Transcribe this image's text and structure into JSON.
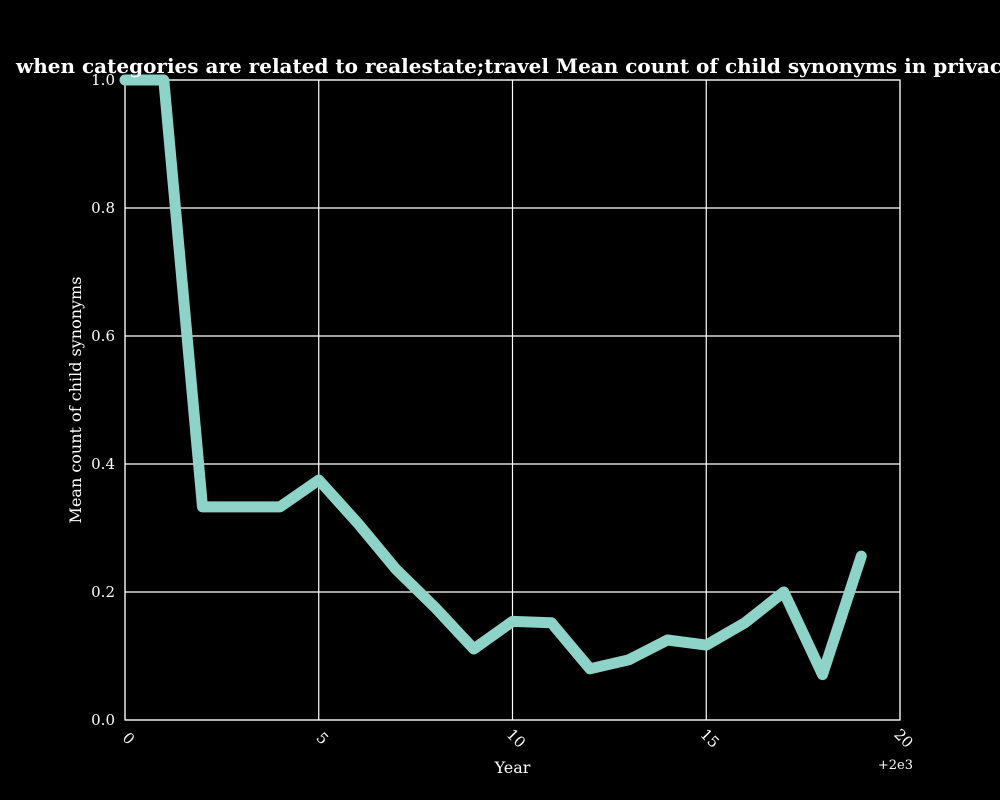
{
  "chart_data": {
    "type": "line",
    "title": "when categories are related to realestate;travel Mean count of child synonyms in privacy policies by Year",
    "xlabel": "Year",
    "ylabel": "Mean count of child synonyms",
    "x_offset_label": "+2e3",
    "xlim": [
      0,
      20
    ],
    "ylim": [
      0,
      1
    ],
    "x_ticks": [
      "0",
      "5",
      "10",
      "15",
      "20"
    ],
    "y_ticks": [
      "0.0",
      "0.2",
      "0.4",
      "0.6",
      "0.8",
      "1.0"
    ],
    "grid": true,
    "series": [
      {
        "color": "#8dd3c7",
        "x": [
          0,
          1,
          2,
          3,
          4,
          5,
          6,
          7,
          8,
          9,
          10,
          11,
          12,
          13,
          14,
          15,
          16,
          17,
          18,
          19
        ],
        "y": [
          1.0,
          1.0,
          0.333,
          0.333,
          0.333,
          0.375,
          0.308,
          0.235,
          0.176,
          0.111,
          0.154,
          0.152,
          0.08,
          0.094,
          0.125,
          0.117,
          0.152,
          0.2,
          0.071,
          0.256
        ]
      }
    ],
    "colors": {
      "background": "#000000",
      "grid": "#ffffff",
      "text": "#ffffff"
    }
  }
}
